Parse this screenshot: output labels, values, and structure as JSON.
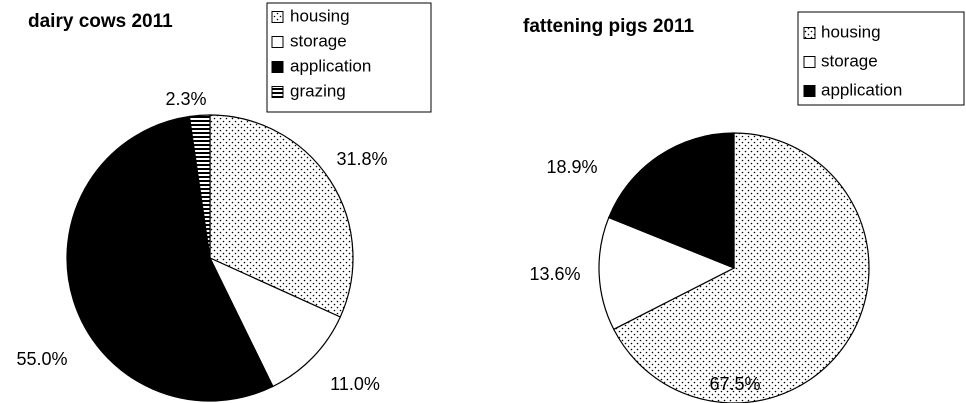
{
  "chart_data": [
    {
      "type": "pie",
      "title": "dairy cows 2011",
      "categories": [
        "housing",
        "storage",
        "application",
        "grazing"
      ],
      "values": [
        31.8,
        11.0,
        55.0,
        2.3
      ],
      "value_labels": [
        "31.8%",
        "11.0%",
        "55.0%",
        "2.3%"
      ],
      "patterns": [
        "dots",
        "none",
        "solid",
        "hstripes"
      ],
      "legend": "upper right"
    },
    {
      "type": "pie",
      "title": "fattening pigs 2011",
      "categories": [
        "housing",
        "storage",
        "application"
      ],
      "values": [
        67.5,
        13.6,
        18.9
      ],
      "value_labels": [
        "67.5%",
        "13.6%",
        "18.9%"
      ],
      "patterns": [
        "dots",
        "none",
        "solid"
      ],
      "legend": "upper right"
    }
  ]
}
